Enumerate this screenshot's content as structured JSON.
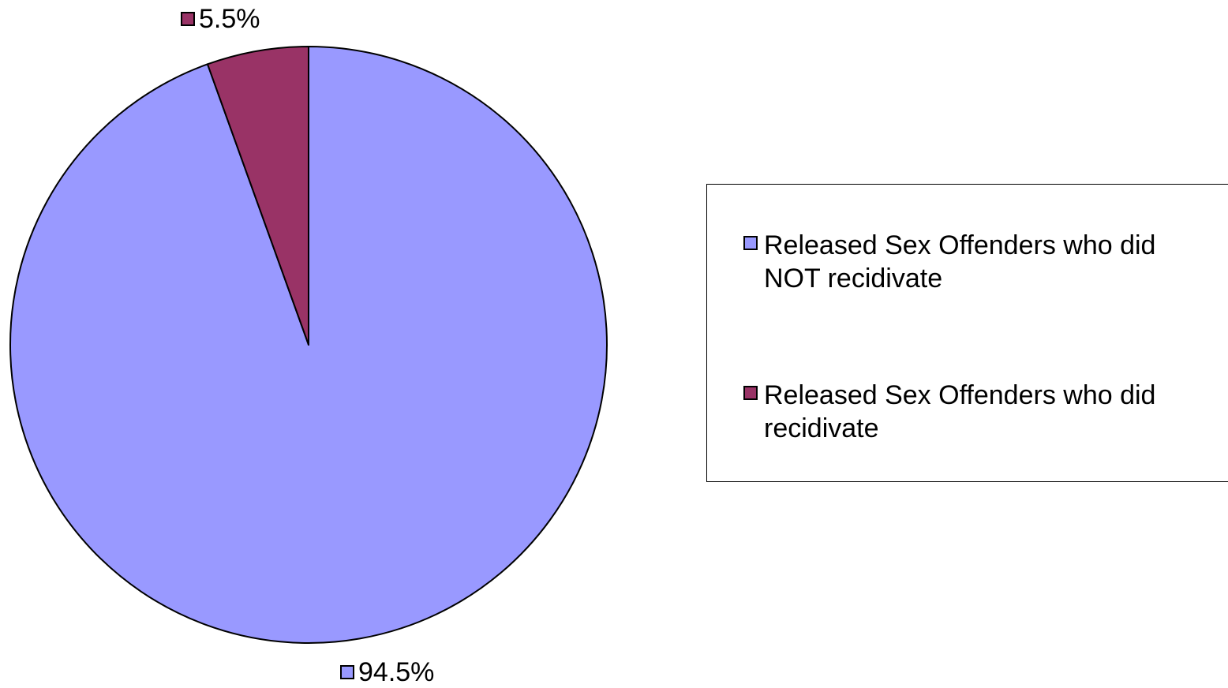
{
  "chart_data": {
    "type": "pie",
    "categories": [
      "Released Sex Offenders who did NOT recidivate",
      "Released Sex Offenders who did recidivate"
    ],
    "values": [
      94.5,
      5.5
    ],
    "data_labels": [
      "94.5%",
      "5.5%"
    ],
    "colors": [
      "#9999ff",
      "#993366"
    ],
    "start": "12 o'clock, clockwise",
    "legend_position": "right"
  },
  "legend": {
    "items": [
      {
        "label": "Released Sex Offenders who did NOT recidivate",
        "color": "#9999ff"
      },
      {
        "label": "Released Sex Offenders who did recidivate",
        "color": "#993366"
      }
    ]
  }
}
